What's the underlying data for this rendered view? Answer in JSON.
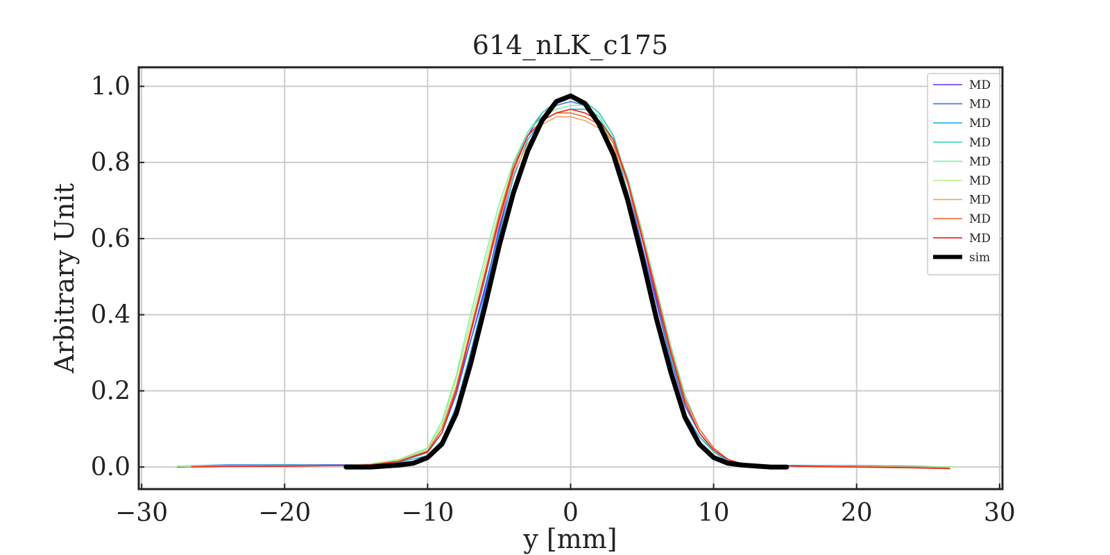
{
  "chart_data": {
    "type": "line",
    "title": "614_nLK_c175",
    "xlabel": "y [mm]",
    "ylabel": "Arbitrary Unit",
    "xlim": [
      -30.2,
      30.2
    ],
    "ylim": [
      -0.058,
      1.05
    ],
    "xticks": [
      -30,
      -20,
      -10,
      0,
      10,
      20,
      30
    ],
    "xtick_labels": [
      "−30",
      "−20",
      "−10",
      "0",
      "10",
      "20",
      "30"
    ],
    "yticks": [
      0.0,
      0.2,
      0.4,
      0.6,
      0.8,
      1.0
    ],
    "ytick_labels": [
      "0.0",
      "0.2",
      "0.4",
      "0.6",
      "0.8",
      "1.0"
    ],
    "grid": true,
    "legend_position": "top-right",
    "series": [
      {
        "name": "MD",
        "color": "#6a2cf5",
        "x": [
          -27.5,
          -24,
          -20,
          -16,
          -14,
          -12,
          -10,
          -9,
          -8,
          -7,
          -6,
          -5,
          -4,
          -3,
          -2,
          -1,
          0,
          1,
          2,
          3,
          4,
          5,
          6,
          7,
          8,
          9,
          10,
          11,
          12,
          14,
          16,
          20,
          24,
          26.5
        ],
        "y": [
          0.0,
          0.004,
          0.006,
          0.004,
          0.006,
          0.015,
          0.04,
          0.1,
          0.2,
          0.33,
          0.47,
          0.62,
          0.78,
          0.87,
          0.93,
          0.96,
          0.97,
          0.96,
          0.93,
          0.87,
          0.75,
          0.6,
          0.44,
          0.28,
          0.16,
          0.09,
          0.04,
          0.015,
          0.006,
          0.004,
          0.004,
          0.002,
          0.0,
          -0.002
        ]
      },
      {
        "name": "MD",
        "color": "#3f6ef9",
        "x": [
          -27.5,
          -24,
          -20,
          -16,
          -14,
          -12,
          -10,
          -9,
          -8,
          -7,
          -6,
          -5,
          -4,
          -3,
          -2,
          -1,
          0,
          1,
          2,
          3,
          4,
          5,
          6,
          7,
          8,
          9,
          10,
          11,
          12,
          14,
          16,
          20,
          24,
          26.5
        ],
        "y": [
          0.002,
          0.006,
          0.006,
          0.006,
          0.006,
          0.014,
          0.038,
          0.09,
          0.19,
          0.33,
          0.46,
          0.63,
          0.8,
          0.88,
          0.92,
          0.95,
          0.96,
          0.95,
          0.92,
          0.86,
          0.74,
          0.58,
          0.43,
          0.28,
          0.16,
          0.09,
          0.04,
          0.015,
          0.006,
          0.004,
          0.004,
          0.002,
          0.0,
          -0.002
        ]
      },
      {
        "name": "MD",
        "color": "#1ab0e8",
        "x": [
          -27.5,
          -24,
          -20,
          -16,
          -14,
          -12,
          -10,
          -9,
          -8,
          -7,
          -6,
          -5,
          -4,
          -3,
          -2,
          -1,
          0,
          1,
          2,
          3,
          4,
          5,
          6,
          7,
          8,
          9,
          10,
          11,
          12,
          14,
          16,
          20,
          24,
          26.5
        ],
        "y": [
          0.002,
          0.004,
          0.006,
          0.004,
          0.004,
          0.012,
          0.03,
          0.07,
          0.16,
          0.3,
          0.45,
          0.61,
          0.76,
          0.86,
          0.91,
          0.93,
          0.94,
          0.94,
          0.92,
          0.85,
          0.72,
          0.56,
          0.4,
          0.26,
          0.14,
          0.08,
          0.04,
          0.02,
          0.008,
          0.004,
          0.004,
          0.004,
          0.002,
          0.0
        ]
      },
      {
        "name": "MD",
        "color": "#34d8b8",
        "x": [
          -27.5,
          -24,
          -20,
          -16,
          -14,
          -12,
          -10,
          -9,
          -8,
          -7,
          -6,
          -5,
          -4,
          -3,
          -2,
          -1,
          0,
          1,
          2,
          3,
          4,
          5,
          6,
          7,
          8,
          9,
          10,
          11,
          12,
          14,
          16,
          20,
          24,
          26.5
        ],
        "y": [
          0.002,
          0.002,
          0.004,
          0.004,
          0.006,
          0.016,
          0.042,
          0.1,
          0.21,
          0.35,
          0.49,
          0.65,
          0.79,
          0.88,
          0.93,
          0.96,
          0.97,
          0.96,
          0.93,
          0.87,
          0.75,
          0.6,
          0.45,
          0.29,
          0.17,
          0.09,
          0.04,
          0.018,
          0.008,
          0.004,
          0.002,
          0.002,
          0.0,
          0.0
        ]
      },
      {
        "name": "MD",
        "color": "#7ef0a8",
        "x": [
          -27.5,
          -24,
          -20,
          -16,
          -14,
          -12,
          -10,
          -9,
          -8,
          -7,
          -6,
          -5,
          -4,
          -3,
          -2,
          -1,
          0,
          1,
          2,
          3,
          4,
          5,
          6,
          7,
          8,
          9,
          10,
          11,
          12,
          14,
          16,
          20,
          24,
          27
        ],
        "y": [
          0.002,
          0.004,
          0.004,
          0.004,
          0.008,
          0.02,
          0.05,
          0.12,
          0.24,
          0.4,
          0.55,
          0.69,
          0.8,
          0.88,
          0.92,
          0.94,
          0.95,
          0.95,
          0.92,
          0.86,
          0.76,
          0.62,
          0.47,
          0.32,
          0.19,
          0.1,
          0.05,
          0.02,
          0.008,
          0.004,
          0.002,
          0.002,
          0.0,
          0.0
        ]
      },
      {
        "name": "MD",
        "color": "#b4f07a",
        "x": [
          -27.5,
          -24,
          -20,
          -16,
          -14,
          -12,
          -10,
          -9,
          -8,
          -7,
          -6,
          -5,
          -4,
          -3,
          -2,
          -1,
          0,
          1,
          2,
          3,
          4,
          5,
          6,
          7,
          8,
          9,
          10,
          11,
          12,
          14,
          16,
          20,
          24,
          27
        ],
        "y": [
          0.002,
          0.002,
          0.004,
          0.004,
          0.008,
          0.018,
          0.046,
          0.11,
          0.23,
          0.38,
          0.53,
          0.67,
          0.79,
          0.87,
          0.91,
          0.93,
          0.94,
          0.93,
          0.91,
          0.85,
          0.75,
          0.61,
          0.46,
          0.31,
          0.18,
          0.1,
          0.05,
          0.02,
          0.008,
          0.004,
          0.002,
          0.002,
          0.0,
          0.0
        ]
      },
      {
        "name": "MD",
        "color": "#f5a15a",
        "x": [
          -26.5,
          -24,
          -20,
          -16,
          -14,
          -12,
          -10,
          -9,
          -8,
          -7,
          -6,
          -5,
          -4,
          -3,
          -2,
          -1,
          0,
          1,
          2,
          3,
          4,
          5,
          6,
          7,
          8,
          9,
          10,
          11,
          12,
          14,
          16,
          20,
          24,
          26.5
        ],
        "y": [
          0.002,
          0.002,
          0.004,
          0.004,
          0.006,
          0.016,
          0.04,
          0.1,
          0.2,
          0.35,
          0.5,
          0.64,
          0.77,
          0.85,
          0.9,
          0.92,
          0.92,
          0.91,
          0.89,
          0.84,
          0.74,
          0.6,
          0.45,
          0.3,
          0.18,
          0.1,
          0.05,
          0.02,
          0.008,
          0.004,
          0.002,
          0.002,
          0.0,
          -0.002
        ]
      },
      {
        "name": "MD",
        "color": "#f26b3a",
        "x": [
          -26.5,
          -24,
          -20,
          -16,
          -14,
          -12,
          -10,
          -9,
          -8,
          -7,
          -6,
          -5,
          -4,
          -3,
          -2,
          -1,
          0,
          1,
          2,
          3,
          4,
          5,
          6,
          7,
          8,
          9,
          10,
          11,
          12,
          14,
          16,
          20,
          24,
          26.5
        ],
        "y": [
          0.0,
          0.002,
          0.004,
          0.004,
          0.006,
          0.016,
          0.042,
          0.1,
          0.21,
          0.36,
          0.51,
          0.66,
          0.79,
          0.87,
          0.91,
          0.93,
          0.93,
          0.92,
          0.9,
          0.85,
          0.75,
          0.61,
          0.46,
          0.31,
          0.18,
          0.1,
          0.05,
          0.02,
          0.008,
          0.004,
          0.002,
          0.0,
          -0.002,
          -0.004
        ]
      },
      {
        "name": "MD",
        "color": "#e8231c",
        "x": [
          -26.5,
          -24,
          -20,
          -16,
          -14,
          -12,
          -10,
          -9,
          -8,
          -7,
          -6,
          -5,
          -4,
          -3,
          -2,
          -1,
          0,
          1,
          2,
          3,
          4,
          5,
          6,
          7,
          8,
          9,
          10,
          11,
          12,
          14,
          16,
          20,
          24,
          26.5
        ],
        "y": [
          0.0,
          0.002,
          0.002,
          0.004,
          0.006,
          0.014,
          0.04,
          0.09,
          0.2,
          0.35,
          0.5,
          0.65,
          0.78,
          0.87,
          0.91,
          0.93,
          0.94,
          0.93,
          0.91,
          0.86,
          0.75,
          0.6,
          0.45,
          0.3,
          0.17,
          0.09,
          0.045,
          0.02,
          0.008,
          0.004,
          0.002,
          0.0,
          -0.002,
          -0.004
        ]
      },
      {
        "name": "sim",
        "color": "#000000",
        "x": [
          -15.7,
          -14,
          -12,
          -11,
          -10,
          -9,
          -8,
          -7,
          -6,
          -5,
          -4,
          -3,
          -2,
          -1,
          0,
          1,
          2,
          3,
          4,
          5,
          6,
          7,
          8,
          9,
          10,
          11,
          12,
          14,
          15.1
        ],
        "y": [
          0.0,
          0.0,
          0.005,
          0.01,
          0.025,
          0.06,
          0.14,
          0.27,
          0.42,
          0.58,
          0.72,
          0.83,
          0.91,
          0.96,
          0.975,
          0.955,
          0.9,
          0.82,
          0.7,
          0.55,
          0.39,
          0.25,
          0.13,
          0.06,
          0.025,
          0.01,
          0.005,
          0.0,
          0.0
        ]
      }
    ]
  }
}
